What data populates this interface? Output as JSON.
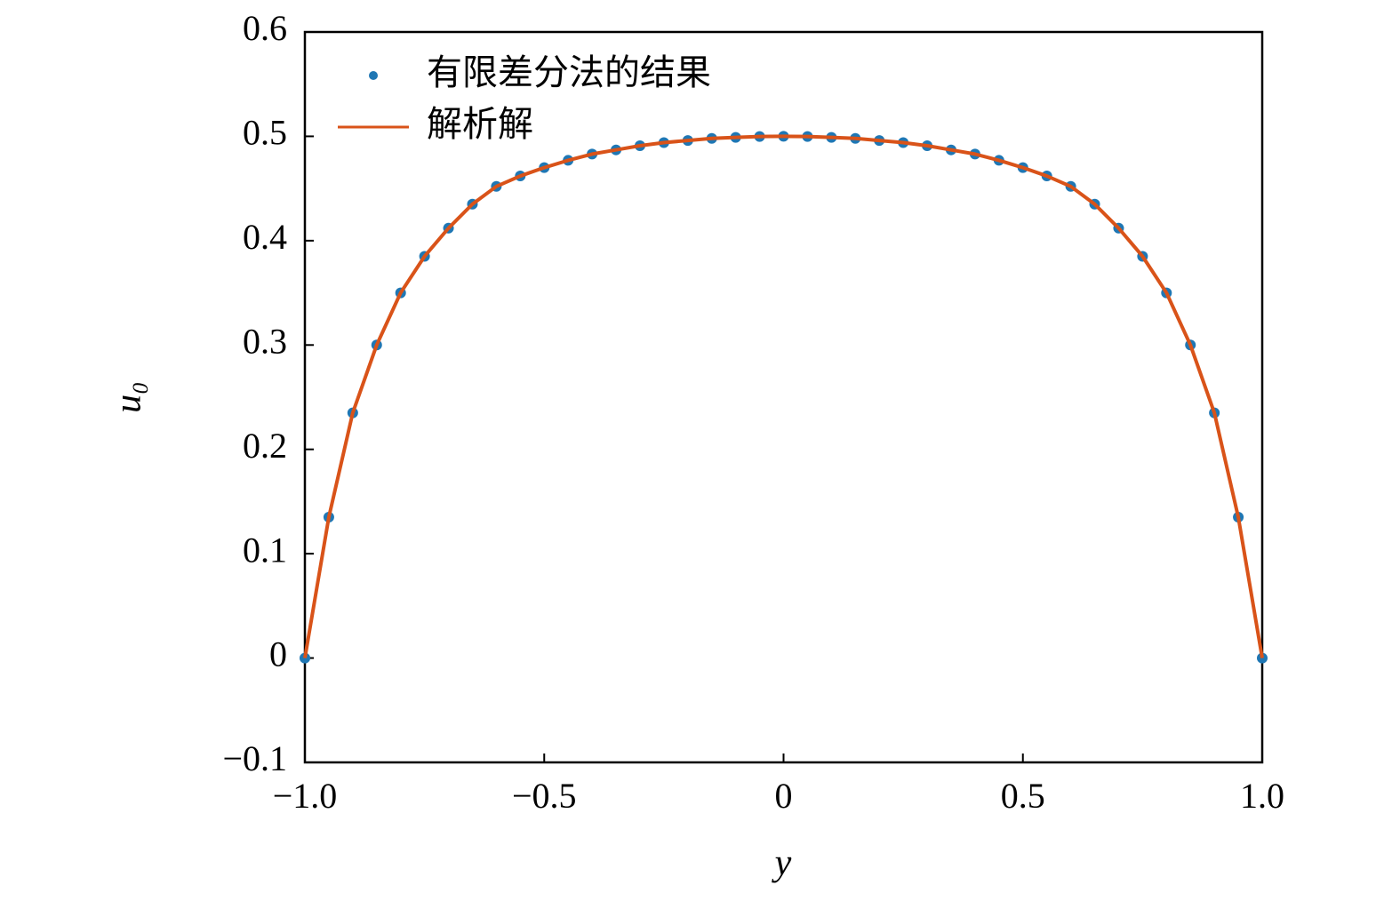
{
  "chart_data": {
    "type": "line",
    "xlabel": "y",
    "ylabel": "u₀",
    "x": [
      -1,
      -0.95,
      -0.9,
      -0.85,
      -0.8,
      -0.75,
      -0.7,
      -0.65,
      -0.6,
      -0.55,
      -0.5,
      -0.45,
      -0.4,
      -0.35,
      -0.3,
      -0.25,
      -0.2,
      -0.15,
      -0.1,
      -0.05,
      0,
      0.05,
      0.1,
      0.15,
      0.2,
      0.25,
      0.3,
      0.35,
      0.4,
      0.45,
      0.5,
      0.55,
      0.6,
      0.65,
      0.7,
      0.75,
      0.8,
      0.85,
      0.9,
      0.95,
      1
    ],
    "series": [
      {
        "name": "有限差分法的结果",
        "color": "#1f77b4",
        "mode": "markers",
        "values": [
          0,
          0.135,
          0.235,
          0.3,
          0.35,
          0.385,
          0.412,
          0.435,
          0.452,
          0.462,
          0.47,
          0.477,
          0.483,
          0.487,
          0.491,
          0.494,
          0.496,
          0.498,
          0.499,
          0.4998,
          0.5,
          0.4998,
          0.499,
          0.498,
          0.496,
          0.494,
          0.491,
          0.487,
          0.483,
          0.477,
          0.47,
          0.462,
          0.452,
          0.435,
          0.412,
          0.385,
          0.35,
          0.3,
          0.235,
          0.135,
          0
        ]
      },
      {
        "name": "解析解",
        "color": "#d95319",
        "mode": "line",
        "values": [
          0,
          0.135,
          0.235,
          0.3,
          0.35,
          0.385,
          0.412,
          0.435,
          0.452,
          0.462,
          0.47,
          0.477,
          0.483,
          0.487,
          0.491,
          0.494,
          0.496,
          0.498,
          0.499,
          0.4998,
          0.5,
          0.4998,
          0.499,
          0.498,
          0.496,
          0.494,
          0.491,
          0.487,
          0.483,
          0.477,
          0.47,
          0.462,
          0.452,
          0.435,
          0.412,
          0.385,
          0.35,
          0.3,
          0.235,
          0.135,
          0
        ]
      }
    ],
    "xlim": [
      -1,
      1
    ],
    "xticks": [
      {
        "value": -1,
        "label": "−1.0"
      },
      {
        "value": -0.5,
        "label": "−0.5"
      },
      0,
      0.5,
      {
        "value": 1,
        "label": "1.0"
      }
    ],
    "ylim": [
      -0.1,
      0.6
    ],
    "yticks": [
      {
        "value": -0.1,
        "label": "−0.1"
      },
      0,
      0.1,
      0.2,
      0.3,
      0.4,
      0.5,
      0.6
    ],
    "legend": "upper left",
    "grid": false
  }
}
